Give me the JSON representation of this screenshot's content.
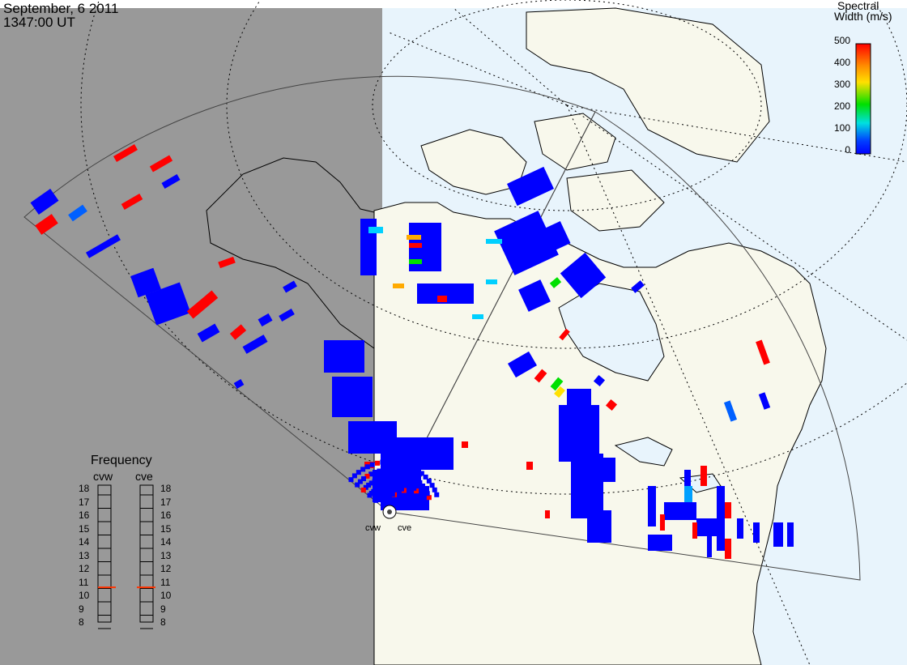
{
  "header": {
    "date": "September, 6 2011",
    "time": "1347:00 UT"
  },
  "colorbar": {
    "title_line1": "Spectral",
    "title_line2": "Width (m/s)",
    "ticks": [
      "500",
      "400",
      "300",
      "200",
      "100",
      "0"
    ],
    "colors": [
      "#ff0000",
      "#ff8c00",
      "#ffe000",
      "#00e000",
      "#00e0e0",
      "#0040ff",
      "#0000ff"
    ]
  },
  "frequency_panel": {
    "title": "Frequency",
    "radar_labels": [
      "cvw",
      "cve"
    ],
    "ticks": [
      "18",
      "17",
      "16",
      "15",
      "14",
      "13",
      "12",
      "11",
      "10",
      "9",
      "8"
    ],
    "cvw_value_mhz": 10.6,
    "cve_value_mhz": 10.6,
    "marker_color": "#ff3300"
  },
  "radars": {
    "west_label": "cvw",
    "east_label": "cve"
  },
  "map_colors": {
    "night": "#999999",
    "ocean_day": "#e8f4fc",
    "land": "#f8f8ec",
    "scatter_blue": "#0000ff",
    "scatter_red": "#ff0000"
  }
}
